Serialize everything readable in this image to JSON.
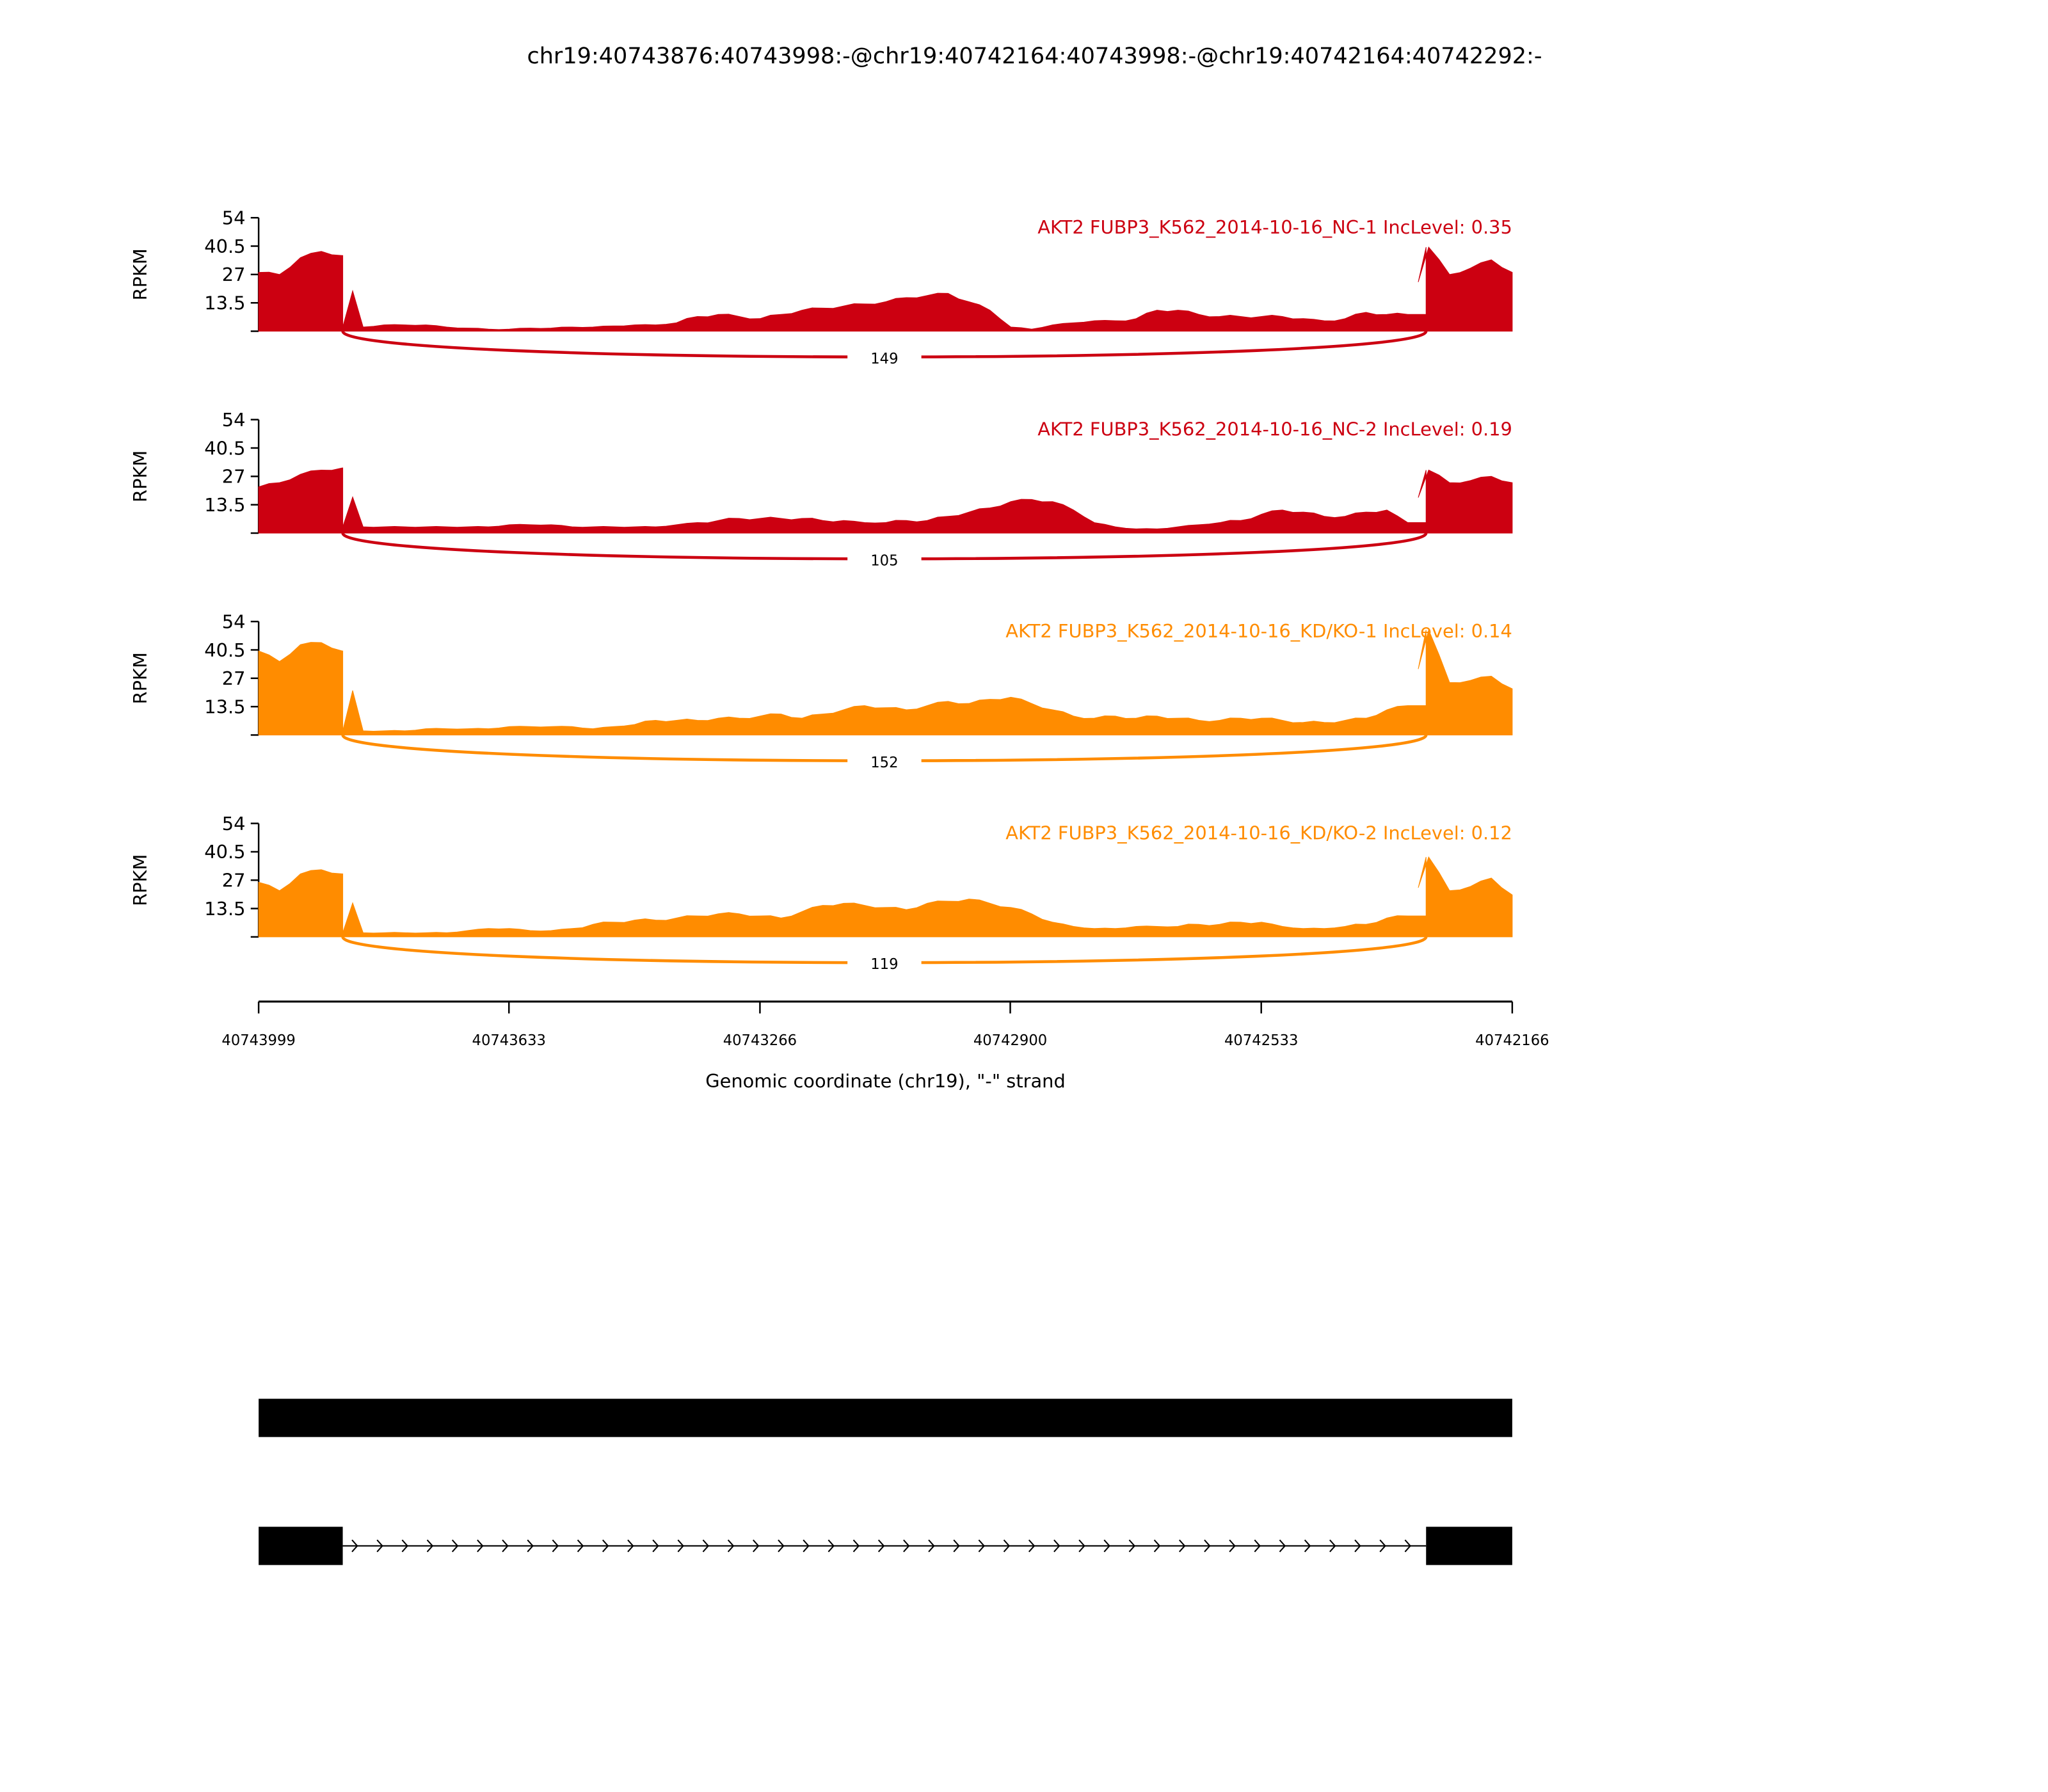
{
  "chart_data": {
    "type": "area",
    "title": "chr19:40743876:40743998:-@chr19:40742164:40743998:-@chr19:40742164:40742292:-",
    "xlabel": "Genomic coordinate (chr19), \"-\" strand",
    "ylabel": "RPKM",
    "xlim": [
      40743999,
      40742166
    ],
    "x_ticks": [
      "40743999",
      "40743633",
      "40743266",
      "40742900",
      "40742533",
      "40742166"
    ],
    "ylim": [
      0,
      54
    ],
    "y_ticks": [
      "13.5",
      "27",
      "40.5",
      "54"
    ],
    "grid": false,
    "colors": {
      "NC": "#cc0011",
      "KD": "#ff8c00"
    },
    "panels": [
      {
        "title": "AKT2 FUBP3_K562_2014-10-16_NC-1 IncLevel: 0.35",
        "group": "NC",
        "junction_count": "149",
        "coverage": [
          28,
          27,
          35,
          38,
          36,
          2,
          3,
          3,
          3,
          2,
          1.5,
          1,
          1,
          1.5,
          1.5,
          2,
          2,
          2.5,
          3,
          3,
          4,
          7,
          8,
          7,
          6,
          8,
          10,
          11,
          12,
          13,
          14,
          16,
          17,
          18,
          14,
          10,
          2,
          1,
          3,
          4,
          5,
          5,
          6,
          10,
          10,
          8,
          7,
          7,
          7,
          7,
          6,
          5,
          6,
          9,
          8,
          8,
          40,
          27,
          30,
          34,
          28
        ]
      },
      {
        "title": "AKT2 FUBP3_K562_2014-10-16_NC-2 IncLevel: 0.19",
        "group": "NC",
        "junction_count": "105",
        "coverage": [
          22,
          24,
          28,
          30,
          31,
          3,
          3,
          3,
          3,
          3,
          3,
          3,
          4,
          4,
          4,
          3,
          3,
          3,
          3,
          3,
          4,
          5,
          6,
          7,
          7,
          7,
          7,
          6,
          6,
          5,
          5,
          6,
          6,
          8,
          10,
          12,
          15,
          16,
          15,
          11,
          5,
          3,
          2,
          2,
          3,
          4,
          5,
          6,
          9,
          11,
          10,
          8,
          8,
          10,
          11,
          5,
          30,
          24,
          25,
          27,
          24
        ]
      },
      {
        "title": "AKT2 FUBP3_K562_2014-10-16_KD/KO-1 IncLevel: 0.14",
        "group": "KD",
        "junction_count": "152",
        "coverage": [
          40,
          35,
          43,
          44,
          40,
          2,
          2,
          2,
          3,
          3,
          3,
          3,
          4,
          4,
          4,
          4,
          3,
          4,
          5,
          7,
          7,
          7,
          8,
          8,
          9,
          10,
          8,
          10,
          12,
          14,
          13,
          12,
          14,
          16,
          15,
          17,
          18,
          15,
          12,
          9,
          8,
          9,
          8,
          9,
          8,
          7,
          7,
          8,
          8,
          7,
          6,
          6,
          7,
          8,
          12,
          14,
          50,
          25,
          26,
          28,
          22
        ]
      },
      {
        "title": "AKT2 FUBP3_K562_2014-10-16_KD/KO-2 IncLevel: 0.12",
        "group": "KD",
        "junction_count": "119",
        "coverage": [
          26,
          22,
          30,
          32,
          30,
          2,
          2,
          2,
          2,
          2,
          3,
          4,
          4,
          3,
          3,
          4,
          6,
          7,
          8,
          8,
          9,
          10,
          11,
          11,
          10,
          9,
          12,
          15,
          16,
          15,
          14,
          13,
          16,
          17,
          18,
          16,
          14,
          11,
          7,
          5,
          4,
          4,
          5,
          5,
          5,
          6,
          6,
          7,
          7,
          5,
          4,
          4,
          5,
          6,
          9,
          10,
          38,
          22,
          24,
          28,
          20
        ]
      }
    ],
    "exons": {
      "exon1": [
        40743999,
        40743876
      ],
      "exon2": [
        40742292,
        40742166
      ]
    },
    "gene_models": [
      {
        "blocks": [
          [
            40743999,
            40742166
          ]
        ]
      },
      {
        "blocks": [
          [
            40743999,
            40743876
          ],
          [
            40742292,
            40742166
          ]
        ]
      }
    ]
  }
}
